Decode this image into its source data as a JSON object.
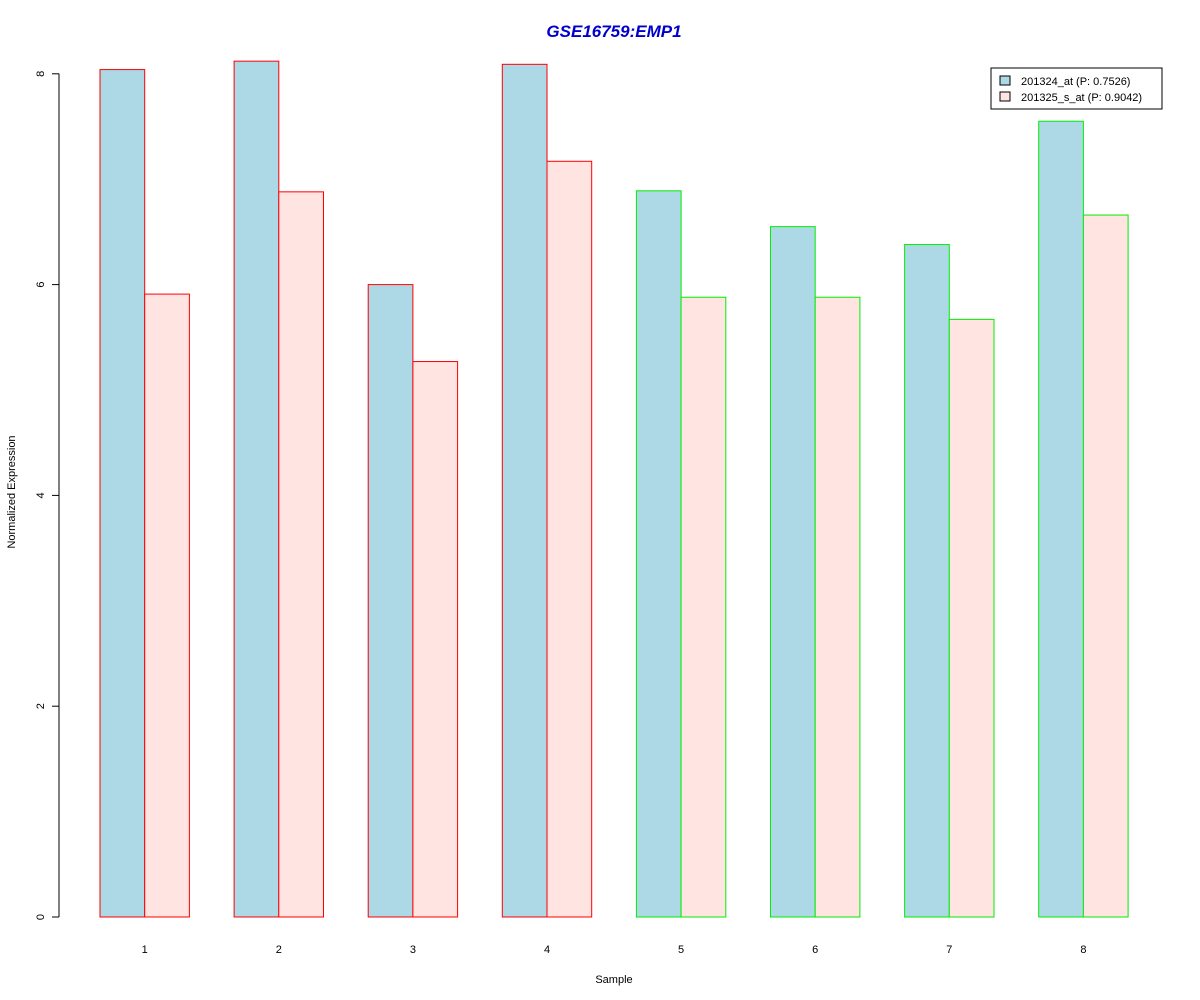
{
  "chart_data": {
    "type": "bar",
    "title": "GSE16759:EMP1",
    "xlabel": "Sample",
    "ylabel": "Normalized Expression",
    "categories": [
      "1",
      "2",
      "3",
      "4",
      "5",
      "6",
      "7",
      "8"
    ],
    "series": [
      {
        "name": "201324_at (P: 0.7526)",
        "fill": "#add8e6",
        "values": [
          8.04,
          8.12,
          6.0,
          8.09,
          6.89,
          6.55,
          6.38,
          7.55
        ]
      },
      {
        "name": "201325_s_at (P: 0.9042)",
        "fill": "#ffe4e1",
        "values": [
          5.91,
          6.88,
          5.27,
          7.17,
          5.88,
          5.88,
          5.67,
          6.66
        ]
      }
    ],
    "group_border_colors": [
      "#ff0000",
      "#ff0000",
      "#ff0000",
      "#ff0000",
      "#00ee00",
      "#00ee00",
      "#00ee00",
      "#00ee00"
    ],
    "yticks": [
      0,
      2,
      4,
      6,
      8
    ],
    "ylim": [
      0,
      8
    ],
    "title_color": "#0000cd",
    "grid": false,
    "legend_position": "top-right"
  }
}
